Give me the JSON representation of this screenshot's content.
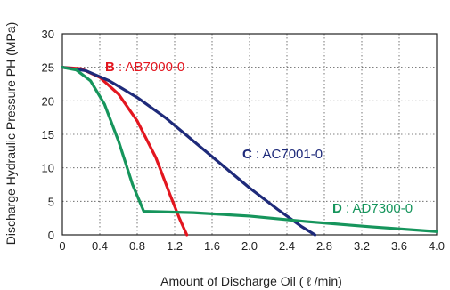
{
  "chart_data": {
    "type": "line",
    "xlabel": "Amount of Discharge Oil ( ℓ /min)",
    "ylabel": "Discharge Hydraulic Pressure PH (MPa)",
    "xlim": [
      0,
      4.0
    ],
    "ylim": [
      0,
      30
    ],
    "x_ticks": [
      "0",
      "0.4",
      "0.8",
      "1.2",
      "1.6",
      "2.0",
      "2.4",
      "2.8",
      "3.2",
      "3.6",
      "4.0"
    ],
    "y_ticks": [
      "0",
      "5",
      "10",
      "15",
      "20",
      "25",
      "30"
    ],
    "grid": true,
    "series": [
      {
        "name": "AB7000-0",
        "letter": "B",
        "sep": " : ",
        "color": "#e3161f",
        "points": [
          [
            0,
            25
          ],
          [
            0.2,
            24.8
          ],
          [
            0.4,
            23.5
          ],
          [
            0.6,
            21
          ],
          [
            0.8,
            17
          ],
          [
            1.0,
            11.5
          ],
          [
            1.15,
            6
          ],
          [
            1.25,
            2.5
          ],
          [
            1.33,
            0
          ]
        ]
      },
      {
        "name": "AC7001-0",
        "letter": "C",
        "sep": " : ",
        "color": "#1e2a7a",
        "points": [
          [
            0,
            25
          ],
          [
            0.25,
            24.5
          ],
          [
            0.5,
            23
          ],
          [
            0.8,
            20.5
          ],
          [
            1.1,
            17.5
          ],
          [
            1.4,
            14
          ],
          [
            1.7,
            10.5
          ],
          [
            2.0,
            7
          ],
          [
            2.3,
            3.8
          ],
          [
            2.55,
            1.3
          ],
          [
            2.7,
            0
          ]
        ]
      },
      {
        "name": "AD7300-0",
        "letter": "D",
        "sep": " : ",
        "color": "#16955c",
        "points": [
          [
            0,
            25
          ],
          [
            0.15,
            24.6
          ],
          [
            0.3,
            23
          ],
          [
            0.45,
            19.5
          ],
          [
            0.6,
            14
          ],
          [
            0.75,
            7.5
          ],
          [
            0.87,
            3.5
          ],
          [
            1.4,
            3.3
          ],
          [
            2.0,
            2.8
          ],
          [
            2.6,
            2.0
          ],
          [
            3.3,
            1.2
          ],
          [
            4.0,
            0.5
          ]
        ]
      }
    ]
  }
}
